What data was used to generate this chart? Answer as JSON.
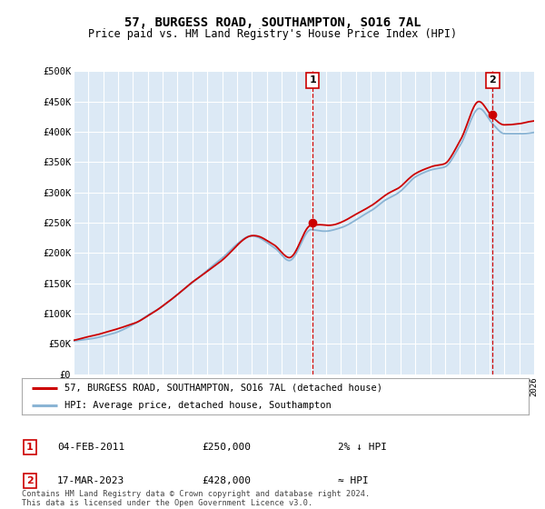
{
  "title": "57, BURGESS ROAD, SOUTHAMPTON, SO16 7AL",
  "subtitle": "Price paid vs. HM Land Registry's House Price Index (HPI)",
  "ylim": [
    0,
    500000
  ],
  "yticks": [
    0,
    50000,
    100000,
    150000,
    200000,
    250000,
    300000,
    350000,
    400000,
    450000,
    500000
  ],
  "ytick_labels": [
    "£0",
    "£50K",
    "£100K",
    "£150K",
    "£200K",
    "£250K",
    "£300K",
    "£350K",
    "£400K",
    "£450K",
    "£500K"
  ],
  "bg_color": "#dce9f5",
  "grid_color": "#ffffff",
  "sale1_date": 2011.09,
  "sale1_price": 250000,
  "sale1_label": "1",
  "sale2_date": 2023.21,
  "sale2_price": 428000,
  "sale2_label": "2",
  "legend_line1": "57, BURGESS ROAD, SOUTHAMPTON, SO16 7AL (detached house)",
  "legend_line2": "HPI: Average price, detached house, Southampton",
  "annot1": "04-FEB-2011",
  "annot1_price": "£250,000",
  "annot1_hpi": "2% ↓ HPI",
  "annot2": "17-MAR-2023",
  "annot2_price": "£428,000",
  "annot2_hpi": "≈ HPI",
  "footer": "Contains HM Land Registry data © Crown copyright and database right 2024.\nThis data is licensed under the Open Government Licence v3.0.",
  "line_color_hpi": "#8ab4d4",
  "line_color_sale": "#cc0000",
  "marker_color": "#cc0000",
  "vline_color": "#cc0000",
  "label_box_color": "#cc0000"
}
